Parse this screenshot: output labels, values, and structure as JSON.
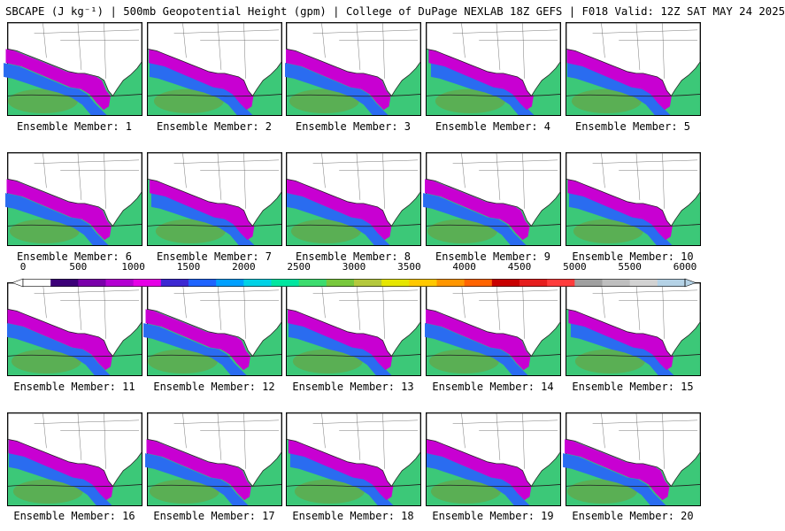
{
  "title": "SBCAPE (J kg⁻¹) | 500mb Geopotential Height (gpm) | College of DuPage NEXLAB 18Z GEFS | F018 Valid: 12Z SAT MAY 24 2025",
  "panels": [
    {
      "label": "Ensemble Member: 1"
    },
    {
      "label": "Ensemble Member: 2"
    },
    {
      "label": "Ensemble Member: 3"
    },
    {
      "label": "Ensemble Member: 4"
    },
    {
      "label": "Ensemble Member: 5"
    },
    {
      "label": "Ensemble Member: 6"
    },
    {
      "label": "Ensemble Member: 7"
    },
    {
      "label": "Ensemble Member: 8"
    },
    {
      "label": "Ensemble Member: 9"
    },
    {
      "label": "Ensemble Member: 10"
    },
    {
      "label": "Ensemble Member: 11"
    },
    {
      "label": "Ensemble Member: 12"
    },
    {
      "label": "Ensemble Member: 13"
    },
    {
      "label": "Ensemble Member: 14"
    },
    {
      "label": "Ensemble Member: 15"
    },
    {
      "label": "Ensemble Member: 16"
    },
    {
      "label": "Ensemble Member: 17"
    },
    {
      "label": "Ensemble Member: 18"
    },
    {
      "label": "Ensemble Member: 19"
    },
    {
      "label": "Ensemble Member: 20"
    }
  ],
  "colorbar": {
    "ticks": [
      "0",
      "500",
      "1000",
      "1500",
      "2000",
      "2500",
      "3000",
      "3500",
      "4000",
      "4500",
      "5000",
      "5500",
      "6000"
    ],
    "colors": [
      "#ffffff",
      "#3c0078",
      "#7a00aa",
      "#b400d2",
      "#e600e6",
      "#3c28d2",
      "#1e64ff",
      "#00a0ff",
      "#00d2e6",
      "#00e6a0",
      "#3cdc6e",
      "#78c83c",
      "#b4c83c",
      "#e6e600",
      "#ffc800",
      "#ff9600",
      "#ff6400",
      "#c80000",
      "#e61e1e",
      "#ff3c3c",
      "#a0a0a0",
      "#bebebe",
      "#d2d2d2",
      "#b4d2e6"
    ]
  }
}
